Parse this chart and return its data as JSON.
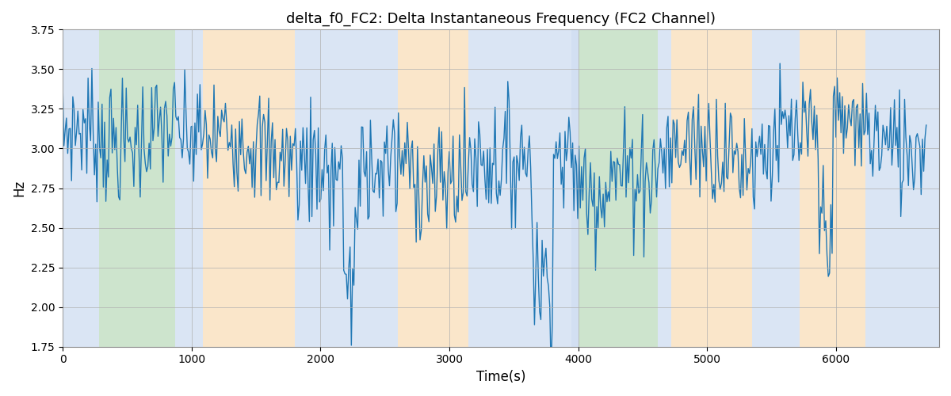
{
  "title": "delta_f0_FC2: Delta Instantaneous Frequency (FC2 Channel)",
  "xlabel": "Time(s)",
  "ylabel": "Hz",
  "ylim": [
    1.75,
    3.75
  ],
  "xlim": [
    0,
    6800
  ],
  "line_color": "#1f77b4",
  "line_width": 1.0,
  "background_color": "#ffffff",
  "grid_color": "#b0b0b0",
  "bands": [
    {
      "xmin": 0,
      "xmax": 280,
      "color": "#aec6e8",
      "alpha": 0.45
    },
    {
      "xmin": 280,
      "xmax": 870,
      "color": "#90c490",
      "alpha": 0.45
    },
    {
      "xmin": 870,
      "xmax": 1090,
      "color": "#aec6e8",
      "alpha": 0.45
    },
    {
      "xmin": 1090,
      "xmax": 1800,
      "color": "#f5c98a",
      "alpha": 0.45
    },
    {
      "xmin": 1800,
      "xmax": 2600,
      "color": "#aec6e8",
      "alpha": 0.45
    },
    {
      "xmin": 2600,
      "xmax": 3150,
      "color": "#f5c98a",
      "alpha": 0.45
    },
    {
      "xmin": 3150,
      "xmax": 3950,
      "color": "#aec6e8",
      "alpha": 0.45
    },
    {
      "xmin": 3950,
      "xmax": 4000,
      "color": "#aec6e8",
      "alpha": 0.55
    },
    {
      "xmin": 4000,
      "xmax": 4620,
      "color": "#90c490",
      "alpha": 0.45
    },
    {
      "xmin": 4620,
      "xmax": 4720,
      "color": "#aec6e8",
      "alpha": 0.45
    },
    {
      "xmin": 4720,
      "xmax": 5350,
      "color": "#f5c98a",
      "alpha": 0.45
    },
    {
      "xmin": 5350,
      "xmax": 5720,
      "color": "#aec6e8",
      "alpha": 0.45
    },
    {
      "xmin": 5720,
      "xmax": 6230,
      "color": "#f5c98a",
      "alpha": 0.45
    },
    {
      "xmin": 6230,
      "xmax": 6800,
      "color": "#aec6e8",
      "alpha": 0.45
    }
  ],
  "n_points": 680,
  "figsize": [
    12,
    5
  ],
  "dpi": 100
}
